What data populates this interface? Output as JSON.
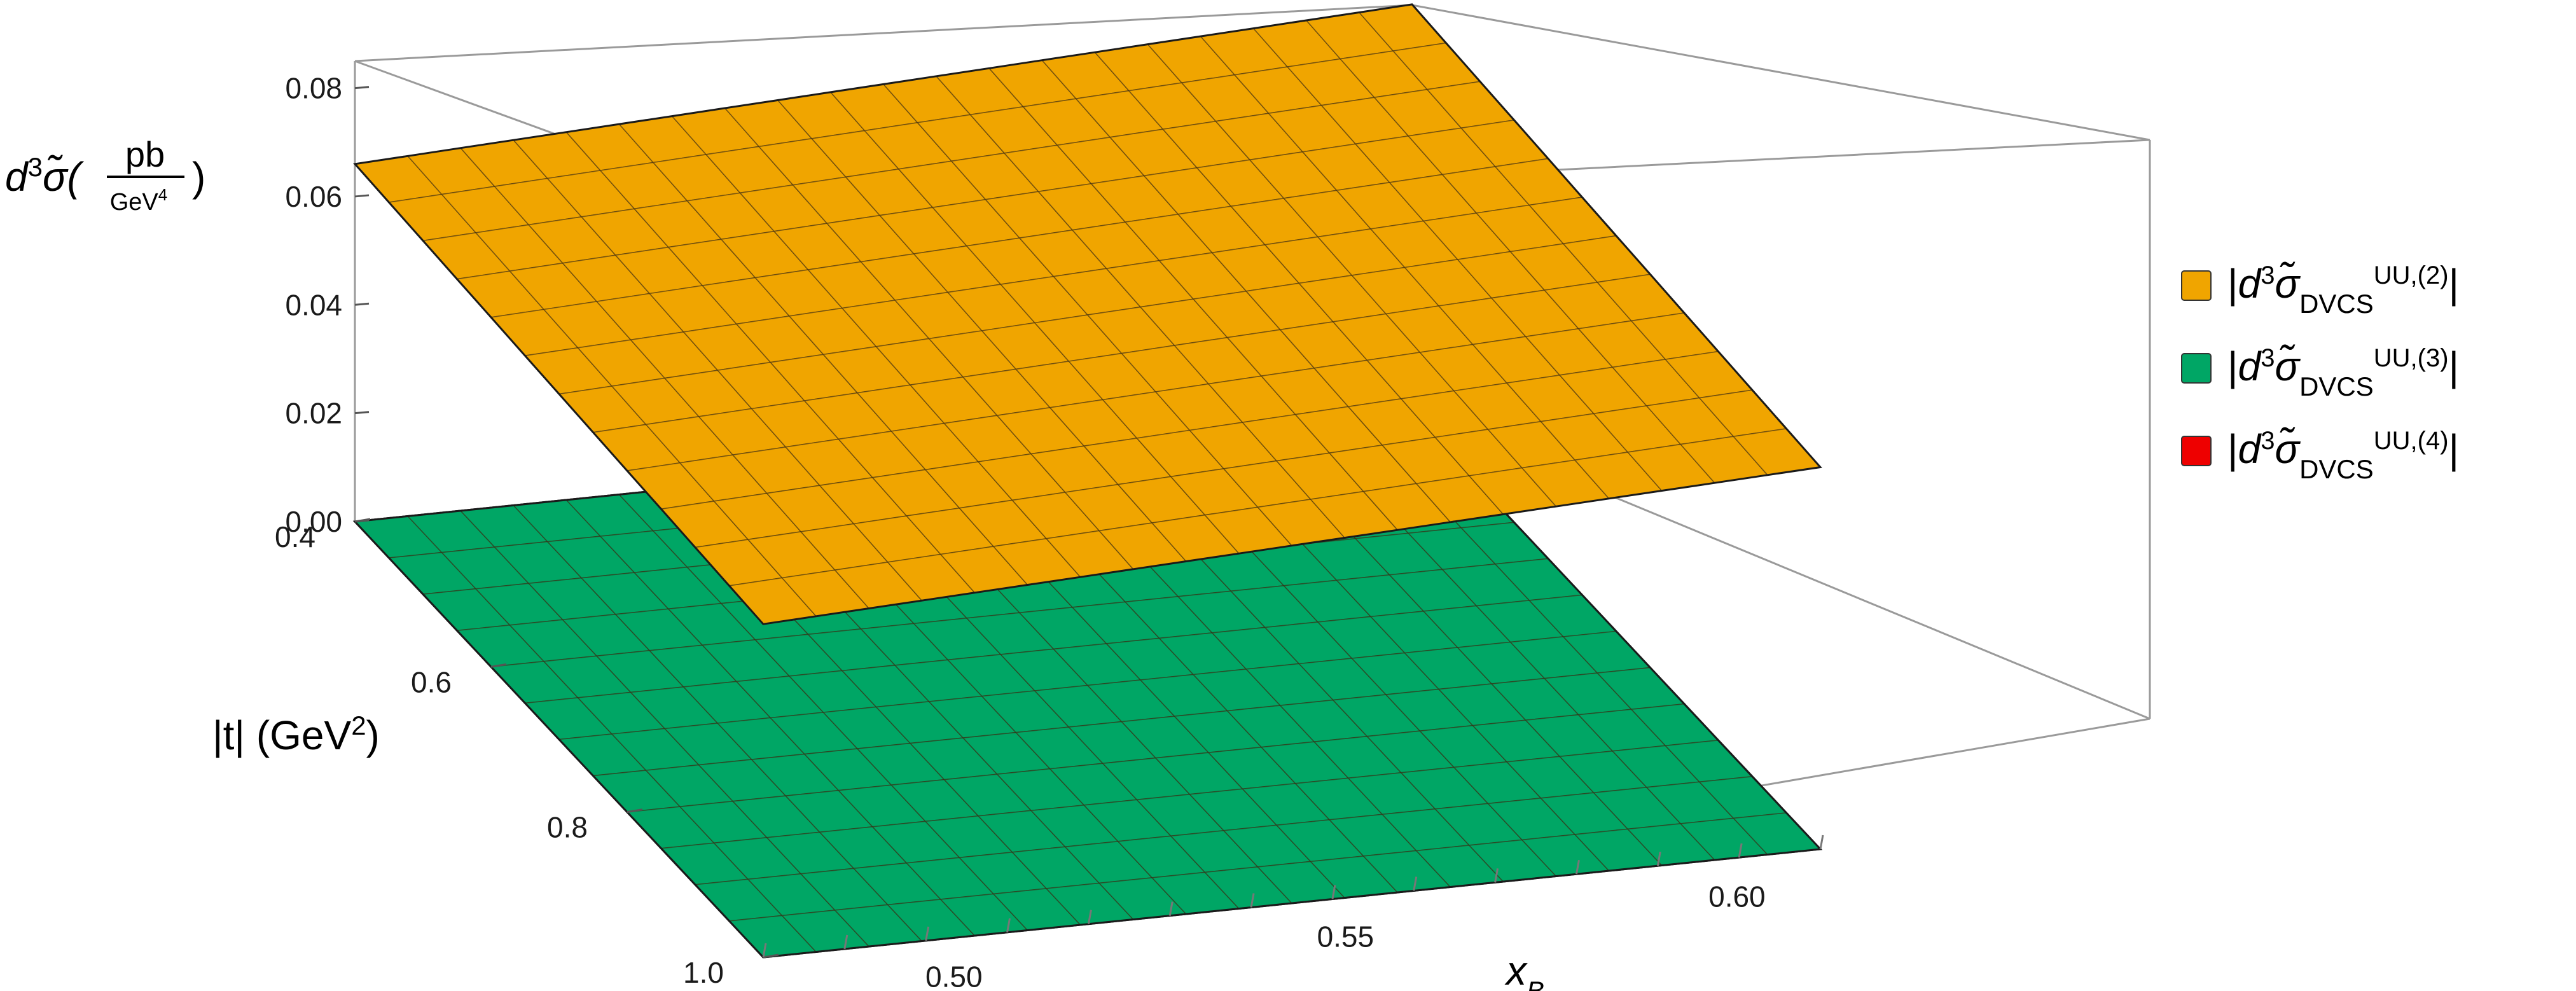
{
  "chart_data": {
    "type": "surface3d",
    "axes": {
      "x": {
        "label": "x",
        "label_sub": "B",
        "range": [
          0.475,
          0.61
        ],
        "ticks": [
          "0.50",
          "0.55",
          "0.60"
        ],
        "tick_values": [
          0.5,
          0.55,
          0.6
        ]
      },
      "t": {
        "label": "|t| (GeV",
        "label_sup": "2",
        "label_close": ")",
        "range": [
          0.4,
          1.0
        ],
        "ticks": [
          "0.4",
          "0.6",
          "0.8",
          "1.0"
        ],
        "tick_values": [
          0.4,
          0.6,
          0.8,
          1.0
        ]
      },
      "z": {
        "label_main": "d",
        "label_sup": "3",
        "label_sigma": "σ̃(",
        "label_num": "pb",
        "label_den": "GeV",
        "label_den_sup": "4",
        "label_close": ")",
        "range": [
          0.0,
          0.085
        ],
        "ticks": [
          "0.00",
          "0.02",
          "0.04",
          "0.06",
          "0.08"
        ],
        "tick_values": [
          0.0,
          0.02,
          0.04,
          0.06,
          0.08
        ]
      }
    },
    "series": [
      {
        "name": "|d3σ̃DVCS UU,(2)|",
        "label_sup": "UU,(2)",
        "color": "#F0A500",
        "corners": {
          "x_min_t_min": 0.066,
          "x_max_t_min": 0.0755,
          "x_min_t_max": 0.0615,
          "x_max_t_max": 0.0705
        }
      },
      {
        "name": "|d3σ̃DVCS UU,(3)|",
        "label_sup": "UU,(3)",
        "color": "#00A665",
        "corners": {
          "x_min_t_min": 0.0,
          "x_max_t_min": 0.0,
          "x_min_t_max": 0.0,
          "x_max_t_max": 0.0
        }
      },
      {
        "name": "|d3σ̃DVCS UU,(4)|",
        "label_sup": "UU,(4)",
        "color": "#EE0000",
        "corners": {
          "x_min_t_min": 0.0,
          "x_max_t_min": 0.0,
          "x_min_t_max": 0.0,
          "x_max_t_max": 0.0
        }
      }
    ],
    "legend": {
      "position": "right"
    },
    "grid": true
  }
}
